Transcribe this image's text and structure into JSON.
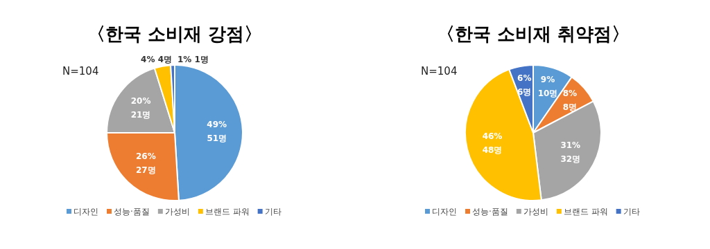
{
  "chart_data": [
    {
      "type": "pie",
      "title": "〈한국 소비재 강점〉",
      "categories": [
        "디자인",
        "성능·품질",
        "가성비",
        "브랜드 파워",
        "기타"
      ],
      "values": [
        51,
        27,
        21,
        4,
        1
      ],
      "colors": [
        "#5b9bd5",
        "#ed7d31",
        "#a5a5a5",
        "#ffc000",
        "#4472c4"
      ],
      "value_labels": [
        "49%\n51명",
        "26%\n27명",
        "20%\n21명",
        "4%\n4명",
        "1%\n1명"
      ],
      "annotations": [
        "N=104"
      ],
      "legend": "bottom"
    },
    {
      "type": "pie",
      "title": "〈한국 소비재 취약점〉",
      "categories": [
        "디자인",
        "성능·품질",
        "가성비",
        "브랜드 파워",
        "기타"
      ],
      "values": [
        10,
        8,
        32,
        48,
        6
      ],
      "colors": [
        "#5b9bd5",
        "#ed7d31",
        "#a5a5a5",
        "#ffc000",
        "#4472c4"
      ],
      "value_labels": [
        "9%\n10명",
        "8%\n8명",
        "31%\n32명",
        "46%\n48명",
        "6%\n6명"
      ],
      "annotations": [
        "N=104"
      ],
      "legend": "bottom"
    }
  ]
}
